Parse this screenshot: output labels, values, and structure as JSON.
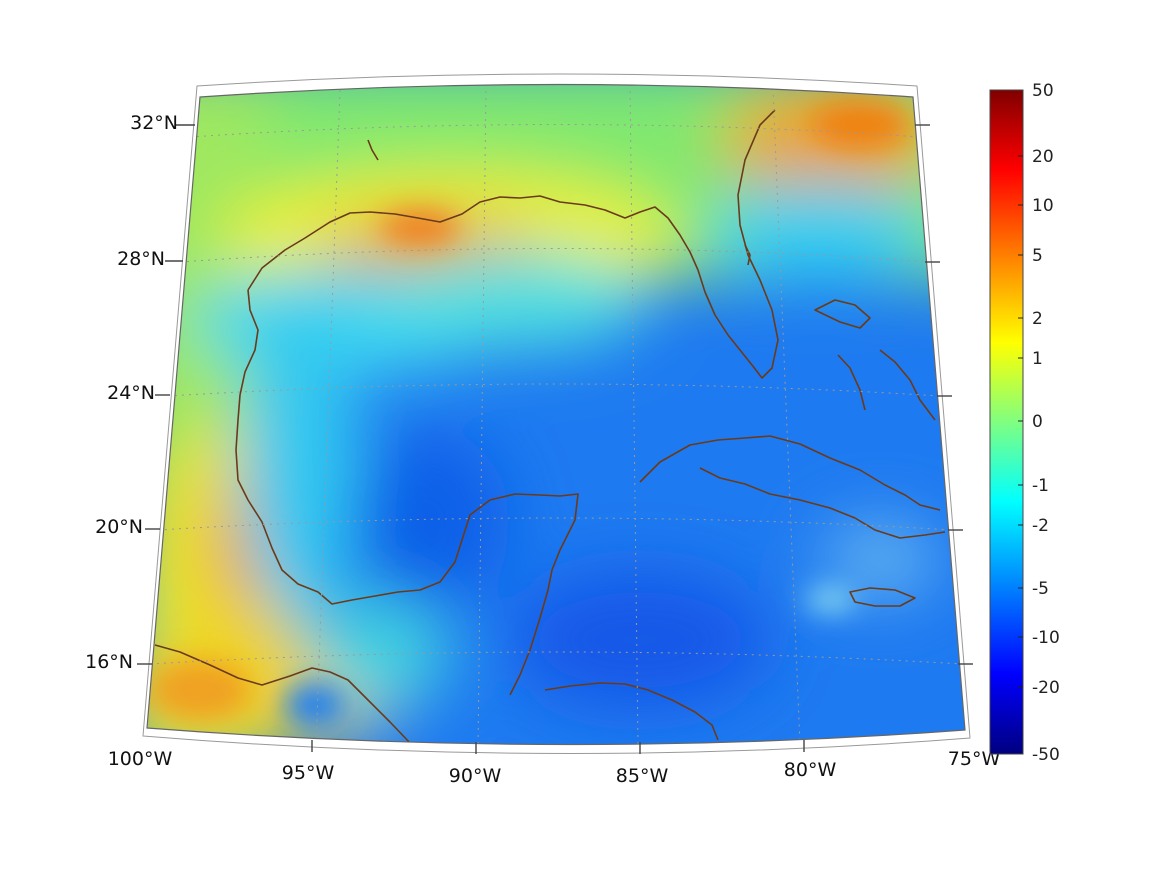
{
  "map": {
    "longitude_labels": [
      "100°W",
      "95°W",
      "90°W",
      "85°W",
      "80°W",
      "75°W"
    ],
    "latitude_labels": [
      "32°N",
      "28°N",
      "24°N",
      "20°N",
      "16°N"
    ],
    "land_outline_color": "#6b3a1a",
    "graticule_color": "#9a9a9a"
  },
  "colorbar": {
    "tick_labels": [
      "50",
      "20",
      "10",
      "5",
      "2",
      "1",
      "0",
      "-1",
      "-2",
      "-5",
      "-10",
      "-20",
      "-50"
    ],
    "colormap": "jet",
    "stops": [
      "#800000",
      "#ff0000",
      "#ff8000",
      "#ffff00",
      "#80ff80",
      "#00ffff",
      "#0080ff",
      "#0000ff",
      "#000080"
    ]
  }
}
